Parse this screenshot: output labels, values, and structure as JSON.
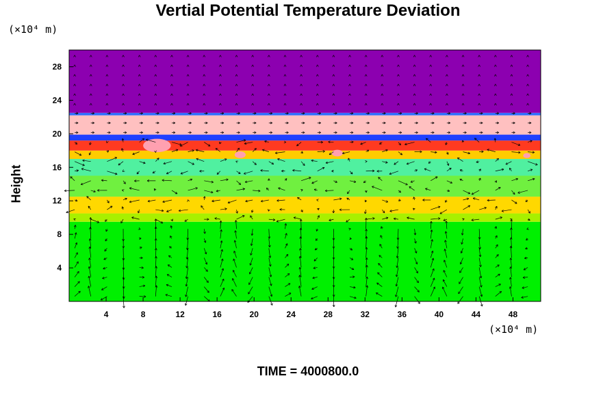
{
  "chart_data": {
    "type": "heatmap",
    "title": "Vertial Potential Temperature Deviation",
    "ylabel": "Height",
    "y_unit": "(×10⁴ m)",
    "x_unit": "(×10⁴ m)",
    "footer": "TIME = 4000800.0",
    "x_ticks": [
      4,
      8,
      12,
      16,
      20,
      24,
      28,
      32,
      36,
      40,
      44,
      48
    ],
    "y_ticks": [
      4,
      8,
      12,
      16,
      20,
      24,
      28
    ],
    "xlim": [
      0,
      51
    ],
    "ylim": [
      0,
      30
    ],
    "layers": [
      {
        "from": 0,
        "to": 9.5,
        "color": "#00f000"
      },
      {
        "from": 9.5,
        "to": 10.5,
        "color": "#a8f000"
      },
      {
        "from": 10.5,
        "to": 12.5,
        "color": "#ffd800"
      },
      {
        "from": 12.5,
        "to": 15.0,
        "color": "#70f040"
      },
      {
        "from": 15.0,
        "to": 17.0,
        "color": "#50f0a0"
      },
      {
        "from": 17.0,
        "to": 18.0,
        "color": "#ffcc00"
      },
      {
        "from": 18.0,
        "to": 19.2,
        "color": "#ff3a20"
      },
      {
        "from": 19.2,
        "to": 19.9,
        "color": "#2040ff"
      },
      {
        "from": 19.9,
        "to": 22.2,
        "color": "#ffc0c0"
      },
      {
        "from": 22.2,
        "to": 22.5,
        "color": "#3070ff"
      },
      {
        "from": 22.5,
        "to": 30,
        "color": "#8c00b0"
      }
    ]
  }
}
